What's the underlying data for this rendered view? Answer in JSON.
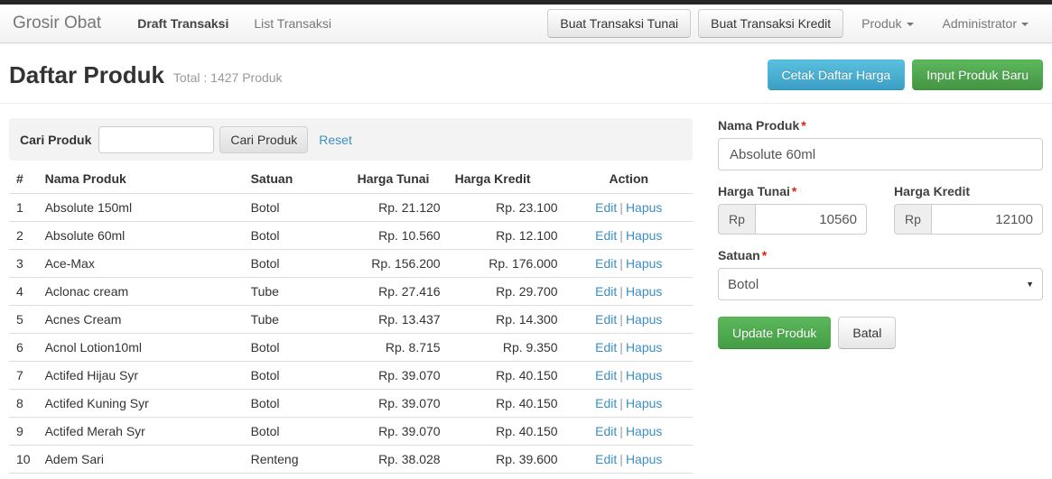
{
  "navbar": {
    "brand": "Grosir Obat",
    "items": [
      {
        "label": "Draft Transaksi"
      },
      {
        "label": "List Transaksi"
      }
    ],
    "buttons": [
      "Buat Transaksi Tunai",
      "Buat Transaksi Kredit"
    ],
    "dropdowns": [
      "Produk",
      "Administrator"
    ]
  },
  "header": {
    "title": "Daftar Produk",
    "subtitle": "Total : 1427 Produk",
    "print_button": "Cetak Daftar Harga",
    "new_button": "Input Produk Baru"
  },
  "search": {
    "label": "Cari Produk",
    "input_value": "",
    "button": "Cari Produk",
    "reset": "Reset"
  },
  "table": {
    "columns": [
      "#",
      "Nama Produk",
      "Satuan",
      "Harga Tunai",
      "Harga Kredit",
      "Action"
    ],
    "action_edit": "Edit",
    "action_sep": "|",
    "action_hapus": "Hapus",
    "rows": [
      {
        "num": "1",
        "name": "Absolute 150ml",
        "satuan": "Botol",
        "tunai": "Rp. 21.120",
        "kredit": "Rp. 23.100"
      },
      {
        "num": "2",
        "name": "Absolute 60ml",
        "satuan": "Botol",
        "tunai": "Rp. 10.560",
        "kredit": "Rp. 12.100"
      },
      {
        "num": "3",
        "name": "Ace-Max",
        "satuan": "Botol",
        "tunai": "Rp. 156.200",
        "kredit": "Rp. 176.000"
      },
      {
        "num": "4",
        "name": "Aclonac cream",
        "satuan": "Tube",
        "tunai": "Rp. 27.416",
        "kredit": "Rp. 29.700"
      },
      {
        "num": "5",
        "name": "Acnes Cream",
        "satuan": "Tube",
        "tunai": "Rp. 13.437",
        "kredit": "Rp. 14.300"
      },
      {
        "num": "6",
        "name": "Acnol Lotion10ml",
        "satuan": "Botol",
        "tunai": "Rp. 8.715",
        "kredit": "Rp. 9.350"
      },
      {
        "num": "7",
        "name": "Actifed Hijau Syr",
        "satuan": "Botol",
        "tunai": "Rp. 39.070",
        "kredit": "Rp. 40.150"
      },
      {
        "num": "8",
        "name": "Actifed Kuning Syr",
        "satuan": "Botol",
        "tunai": "Rp. 39.070",
        "kredit": "Rp. 40.150"
      },
      {
        "num": "9",
        "name": "Actifed Merah Syr",
        "satuan": "Botol",
        "tunai": "Rp. 39.070",
        "kredit": "Rp. 40.150"
      },
      {
        "num": "10",
        "name": "Adem Sari",
        "satuan": "Renteng",
        "tunai": "Rp. 38.028",
        "kredit": "Rp. 39.600"
      }
    ]
  },
  "form": {
    "required_mark": "*",
    "nama_label": "Nama Produk",
    "nama_value": "Absolute 60ml",
    "tunai_label": "Harga Tunai",
    "tunai_prefix": "Rp",
    "tunai_value": "10560",
    "kredit_label": "Harga Kredit",
    "kredit_prefix": "Rp",
    "kredit_value": "12100",
    "satuan_label": "Satuan",
    "satuan_value": "Botol",
    "update_button": "Update Produk",
    "cancel_button": "Batal"
  },
  "colors": {
    "info_button": "#5bc0de",
    "success_button": "#5cb85c",
    "link": "#3d8fc1",
    "required": "#d9230f"
  }
}
